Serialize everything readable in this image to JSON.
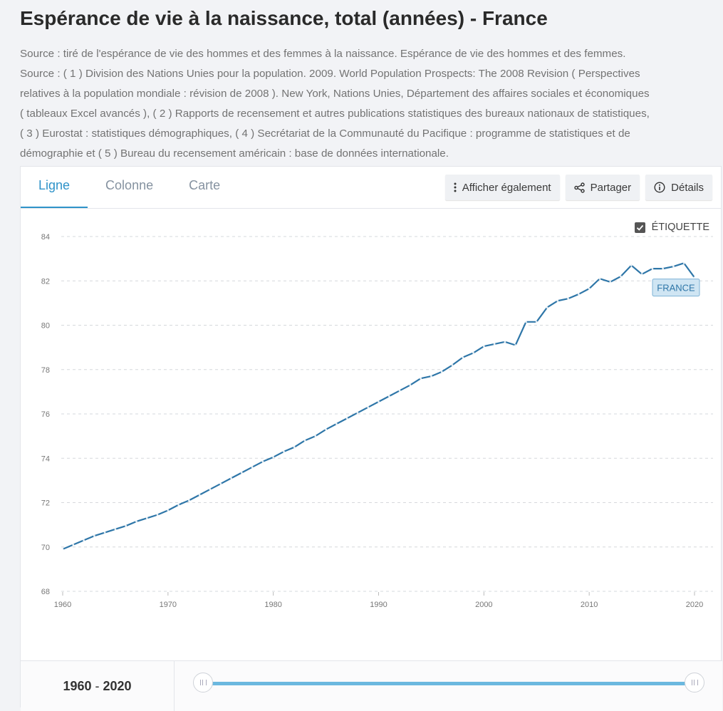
{
  "title": "Espérance de vie à la naissance, total (années) - France",
  "source_lines": [
    "Source : tiré de l'espérance de vie des hommes et des femmes à la naissance. Espérance de vie des hommes et des femmes.",
    "Source : ( 1 ) Division des Nations Unies pour la population. 2009. World Population Prospects: The 2008 Revision ( Perspectives",
    "relatives à la population mondiale : révision de 2008 ). New York, Nations Unies, Département des affaires sociales et économiques",
    "( tableaux Excel avancés ), ( 2 ) Rapports de recensement et autres publications statistiques des bureaux nationaux de statistiques,",
    "( 3 ) Eurostat : statistiques démographiques, ( 4 ) Secrétariat de la Communauté du Pacifique : programme de statistiques et de",
    "démographie et ( 5 ) Bureau du recensement américain : base de données internationale."
  ],
  "tabs": [
    {
      "label": "Ligne",
      "active": true
    },
    {
      "label": "Colonne",
      "active": false
    },
    {
      "label": "Carte",
      "active": false
    }
  ],
  "toolbar": {
    "show_also": "Afficher également",
    "share": "Partager",
    "details": "Détails"
  },
  "label_toggle": {
    "label": "ÉTIQUETTE",
    "checked": true
  },
  "range": {
    "start": "1960",
    "separator": " - ",
    "end": "2020"
  },
  "colors": {
    "line": "#2e76a8",
    "accent": "#2f93c9",
    "tag_bg": "#cfe5f3",
    "tag_border": "#7fb3d6",
    "tag_text": "#2e76a8"
  },
  "chart_data": {
    "type": "line",
    "title": "",
    "xlabel": "",
    "ylabel": "",
    "xlim": [
      1960,
      2020
    ],
    "ylim": [
      68,
      84
    ],
    "x_ticks": [
      1960,
      1970,
      1980,
      1990,
      2000,
      2010,
      2020
    ],
    "y_ticks": [
      68,
      70,
      72,
      74,
      76,
      78,
      80,
      82,
      84
    ],
    "grid": true,
    "series": [
      {
        "name": "FRANCE",
        "x": [
          1960,
          1961,
          1962,
          1963,
          1964,
          1965,
          1966,
          1967,
          1968,
          1969,
          1970,
          1971,
          1972,
          1973,
          1974,
          1975,
          1976,
          1977,
          1978,
          1979,
          1980,
          1981,
          1982,
          1983,
          1984,
          1985,
          1986,
          1987,
          1988,
          1989,
          1990,
          1991,
          1992,
          1993,
          1994,
          1995,
          1996,
          1997,
          1998,
          1999,
          2000,
          2001,
          2002,
          2003,
          2004,
          2005,
          2006,
          2007,
          2008,
          2009,
          2010,
          2011,
          2012,
          2013,
          2014,
          2015,
          2016,
          2017,
          2018,
          2019,
          2020
        ],
        "values": [
          69.9,
          70.1,
          70.3,
          70.5,
          70.65,
          70.8,
          70.95,
          71.15,
          71.3,
          71.45,
          71.65,
          71.9,
          72.1,
          72.35,
          72.6,
          72.85,
          73.1,
          73.35,
          73.6,
          73.85,
          74.05,
          74.3,
          74.5,
          74.8,
          75.0,
          75.3,
          75.55,
          75.8,
          76.05,
          76.3,
          76.55,
          76.8,
          77.05,
          77.3,
          77.6,
          77.7,
          77.9,
          78.2,
          78.55,
          78.75,
          79.05,
          79.15,
          79.25,
          79.1,
          80.15,
          80.15,
          80.8,
          81.1,
          81.2,
          81.4,
          81.65,
          82.1,
          81.95,
          82.2,
          82.7,
          82.3,
          82.55,
          82.55,
          82.65,
          82.8,
          82.15
        ]
      }
    ]
  }
}
